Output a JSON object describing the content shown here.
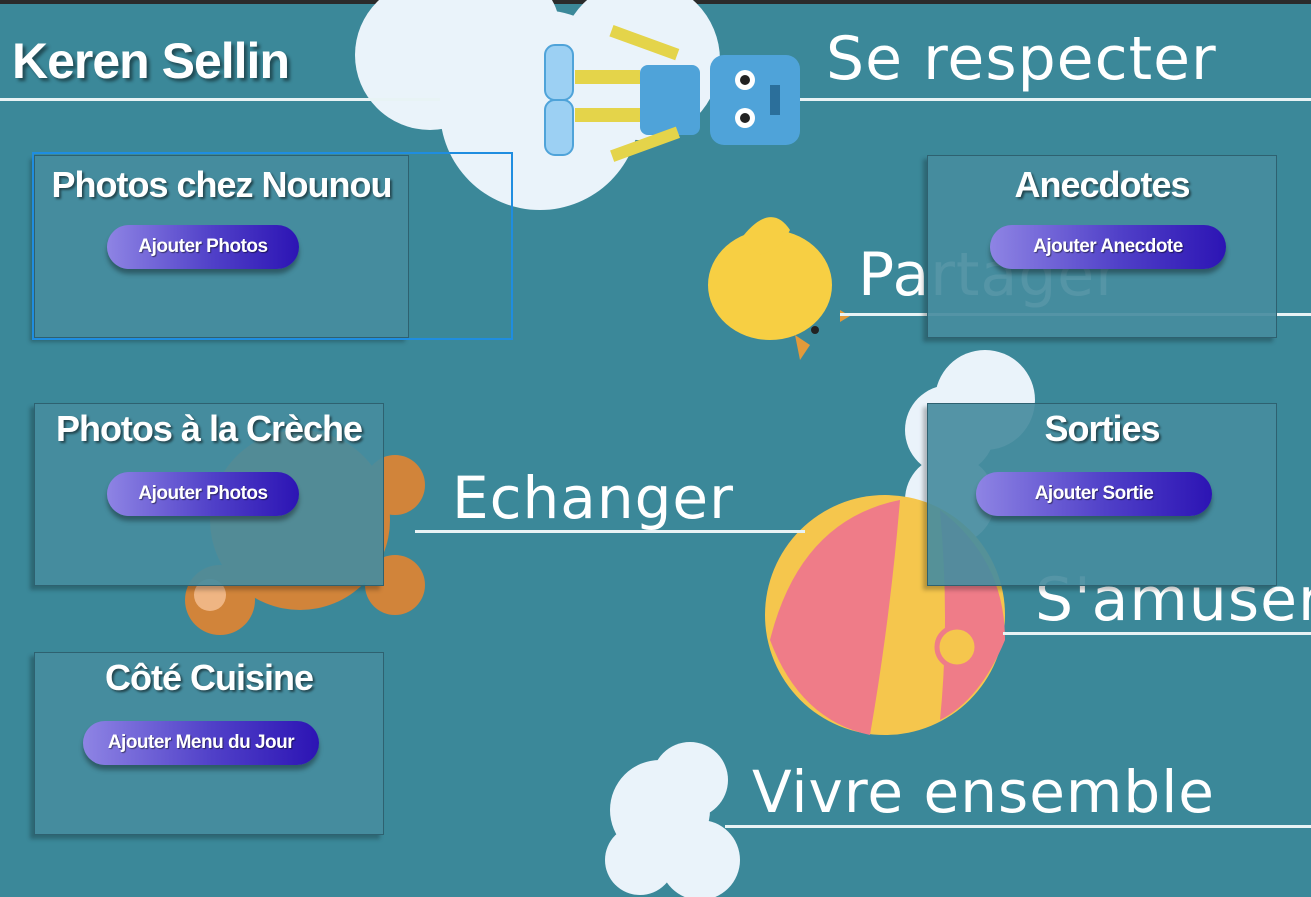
{
  "user": {
    "name": "Keren Sellin"
  },
  "background": {
    "words": [
      "Se respecter",
      "Partager",
      "Echanger",
      "S'amuser",
      "Vivre ensemble"
    ]
  },
  "sections": [
    {
      "title": "Photos chez Nounou",
      "button": "Ajouter Photos"
    },
    {
      "title": "Photos à la Crèche",
      "button": "Ajouter Photos"
    },
    {
      "title": "Côté Cuisine",
      "button": "Ajouter Menu du Jour"
    },
    {
      "title": "Anecdotes",
      "button": "Ajouter Anecdote"
    },
    {
      "title": "Sorties",
      "button": "Ajouter Sortie"
    }
  ],
  "colors": {
    "background": "#3b8899",
    "button_gradient_start": "#8e84e4",
    "button_gradient_end": "#2c14b4",
    "focus_outline": "#1f8de0"
  }
}
